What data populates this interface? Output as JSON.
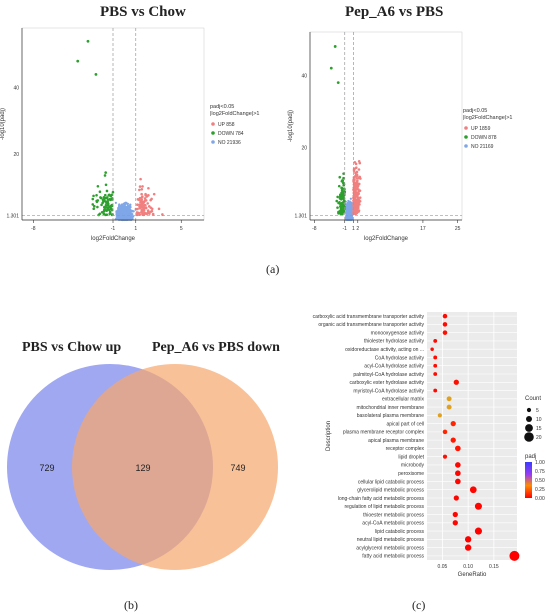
{
  "panels": {
    "a": "(a)",
    "b": "(b)",
    "c": "(c)"
  },
  "chart_data": [
    {
      "type": "scatter",
      "title": "PBS vs Chow",
      "xlabel": "log2FoldChange",
      "ylabel": "-log10(padj)",
      "xticks": [
        "-8",
        "-1",
        "1",
        "5"
      ],
      "yticks": [
        "1.301",
        "20",
        "40"
      ],
      "xlim": [
        -9,
        7
      ],
      "ylim": [
        0,
        58
      ],
      "legend": {
        "title": "padj<0.05\n|log2FoldChange|>1",
        "items": [
          {
            "label": "UP 858",
            "color": "#f08080"
          },
          {
            "label": "DOWN 784",
            "color": "#2ca02c"
          },
          {
            "label": "NO 21936",
            "color": "#7fa7e8"
          }
        ]
      },
      "series": [
        {
          "category": "UP",
          "count": 858
        },
        {
          "category": "DOWN",
          "count": 784
        },
        {
          "category": "NO",
          "count": 21936
        }
      ]
    },
    {
      "type": "scatter",
      "title": "Pep_A6 vs PBS",
      "xlabel": "log2FoldChange",
      "ylabel": "-log10(padj)",
      "xticks": [
        "-8",
        "-1",
        "1",
        "2",
        "17",
        "25"
      ],
      "yticks": [
        "1.301",
        "20",
        "40"
      ],
      "xlim": [
        -9,
        26
      ],
      "ylim": [
        0,
        52
      ],
      "legend": {
        "title": "padj<0.05\n|log2FoldChange|>1",
        "items": [
          {
            "label": "UP 1859",
            "color": "#f08080"
          },
          {
            "label": "DOWN 878",
            "color": "#2ca02c"
          },
          {
            "label": "NO 21169",
            "color": "#7fa7e8"
          }
        ]
      },
      "series": [
        {
          "category": "UP",
          "count": 1859
        },
        {
          "category": "DOWN",
          "count": 878
        },
        {
          "category": "NO",
          "count": 21169
        }
      ]
    },
    {
      "type": "venn",
      "sets": [
        {
          "label": "PBS vs Chow up",
          "color": "#8f99f0"
        },
        {
          "label": "Pep_A6 vs PBS down",
          "color": "#f6a66c"
        }
      ],
      "values": {
        "left_only": 729,
        "both": 129,
        "right_only": 749
      }
    },
    {
      "type": "scatter",
      "subtype": "dotplot",
      "xlabel": "GeneRatio",
      "ylabel": "Description",
      "xticks": [
        0.05,
        0.1,
        0.15
      ],
      "xlim": [
        0.02,
        0.195
      ],
      "size_legend": {
        "title": "Count",
        "values": [
          5,
          10,
          15,
          20
        ]
      },
      "color_legend": {
        "title": "padj",
        "ticks": [
          "1.00",
          "0.75",
          "0.50",
          "0.25",
          "0.00"
        ]
      },
      "points": [
        {
          "term": "carboxylic acid transmembrane transporter activity",
          "ratio": 0.055,
          "count": 6,
          "padj": 0.02
        },
        {
          "term": "organic acid transmembrane transporter activity",
          "ratio": 0.055,
          "count": 6,
          "padj": 0.02
        },
        {
          "term": "monooxygenase activity",
          "ratio": 0.055,
          "count": 6,
          "padj": 0.03
        },
        {
          "term": "thiolester hydrolase activity",
          "ratio": 0.036,
          "count": 4,
          "padj": 0.02
        },
        {
          "term": "oxidoreductase activity, acting on ...",
          "ratio": 0.03,
          "count": 3,
          "padj": 0.02
        },
        {
          "term": "CoA hydrolase activity",
          "ratio": 0.036,
          "count": 4,
          "padj": 0.02
        },
        {
          "term": "acyl-CoA hydrolase activity",
          "ratio": 0.036,
          "count": 4,
          "padj": 0.02
        },
        {
          "term": "palmitoyl-CoA hydrolase activity",
          "ratio": 0.036,
          "count": 4,
          "padj": 0.02
        },
        {
          "term": "carboxylic ester hydrolase activity",
          "ratio": 0.077,
          "count": 8,
          "padj": 0.03
        },
        {
          "term": "myristoyl-CoA hydrolase activity",
          "ratio": 0.036,
          "count": 4,
          "padj": 0.02
        },
        {
          "term": "extracellular matrix",
          "ratio": 0.063,
          "count": 7,
          "padj": 0.35
        },
        {
          "term": "mitochondrial inner membrane",
          "ratio": 0.063,
          "count": 7,
          "padj": 0.3
        },
        {
          "term": "basolateral plasma membrane",
          "ratio": 0.045,
          "count": 5,
          "padj": 0.4
        },
        {
          "term": "apical part of cell",
          "ratio": 0.071,
          "count": 8,
          "padj": 0.08
        },
        {
          "term": "plasma membrane receptor complex",
          "ratio": 0.055,
          "count": 6,
          "padj": 0.08
        },
        {
          "term": "apical plasma membrane",
          "ratio": 0.071,
          "count": 8,
          "padj": 0.05
        },
        {
          "term": "receptor complex",
          "ratio": 0.08,
          "count": 9,
          "padj": 0.04
        },
        {
          "term": "lipid droplet",
          "ratio": 0.055,
          "count": 5,
          "padj": 0.03
        },
        {
          "term": "microbody",
          "ratio": 0.08,
          "count": 9,
          "padj": 0.01
        },
        {
          "term": "peroxisome",
          "ratio": 0.08,
          "count": 9,
          "padj": 0.01
        },
        {
          "term": "cellular lipid catabolic process",
          "ratio": 0.08,
          "count": 9,
          "padj": 0.01
        },
        {
          "term": "glycerolipid metabolic process",
          "ratio": 0.11,
          "count": 12,
          "padj": 0.01
        },
        {
          "term": "long-chain fatty acid metabolic process",
          "ratio": 0.077,
          "count": 8,
          "padj": 0.01
        },
        {
          "term": "regulation of lipid metabolic process",
          "ratio": 0.12,
          "count": 13,
          "padj": 0.01
        },
        {
          "term": "thioester metabolic process",
          "ratio": 0.075,
          "count": 8,
          "padj": 0.01
        },
        {
          "term": "acyl-CoA metabolic process",
          "ratio": 0.075,
          "count": 8,
          "padj": 0.01
        },
        {
          "term": "lipid catabolic process",
          "ratio": 0.12,
          "count": 13,
          "padj": 0.005
        },
        {
          "term": "neutral lipid metabolic process",
          "ratio": 0.1,
          "count": 11,
          "padj": 0.005
        },
        {
          "term": "acylglycerol metabolic process",
          "ratio": 0.1,
          "count": 11,
          "padj": 0.005
        },
        {
          "term": "fatty acid metabolic process",
          "ratio": 0.19,
          "count": 21,
          "padj": 0.001
        }
      ]
    }
  ]
}
